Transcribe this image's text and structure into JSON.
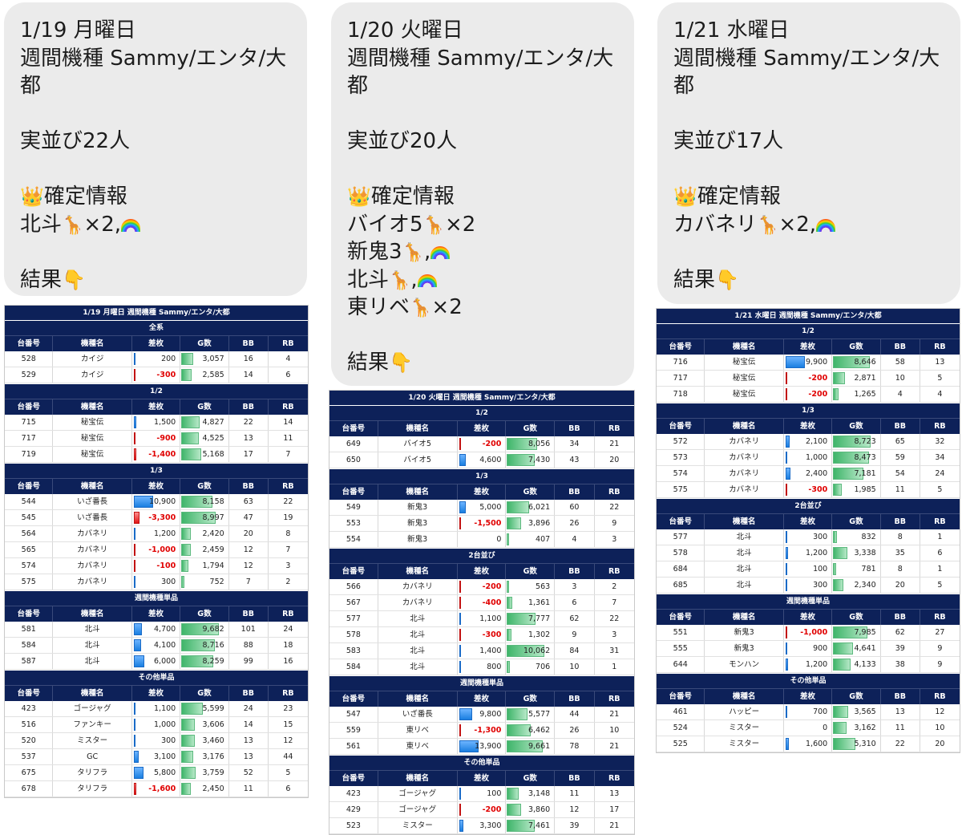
{
  "bubbles": [
    {
      "lines": [
        "1/19 月曜日",
        "週間機種 Sammy/エンタ/大",
        "都",
        "",
        "実並び22人",
        "",
        "確定情報",
        "北斗",
        "",
        "結果"
      ],
      "emoji_lines": {
        "6": [
          "crown"
        ],
        "7": [
          "giraffe",
          "×2,",
          "rainbow"
        ],
        "9": [
          "hand"
        ]
      },
      "x2": "×2,"
    },
    {
      "lines": [
        "1/20 火曜日",
        "週間機種 Sammy/エンタ/大",
        "都",
        "",
        "実並び20人",
        "",
        "確定情報",
        "バイオ5",
        "新鬼3",
        "北斗",
        "東リベ",
        "",
        "結果"
      ],
      "x2": "×2"
    },
    {
      "lines": [
        "1/21 水曜日",
        "週間機種 Sammy/エンタ/大",
        "都",
        "",
        "実並び17人",
        "",
        "確定情報",
        "カバネリ",
        "",
        "結果"
      ],
      "x2": "×2,"
    }
  ],
  "headers": [
    "台番号",
    "機種名",
    "差枚",
    "G数",
    "BB",
    "RB"
  ],
  "icons": {
    "crown": "crown-icon",
    "giraffe": "giraffe-icon",
    "rainbow": "rainbow-icon",
    "hand": "pointing-down-icon"
  },
  "colors": {
    "navy": "#0d2159",
    "negative": "#e00000",
    "diff_bar": "#1a7fe0",
    "neg_bar": "#e01616",
    "g_bar": "#3fb56a"
  },
  "tables": [
    {
      "title": "1/19 月曜日 週間機種 Sammy/エンタ/大都",
      "sections": [
        {
          "name": "全系",
          "rows": [
            [
              "528",
              "カイジ",
              200,
              3057,
              16,
              4
            ],
            [
              "529",
              "カイジ",
              -300,
              2585,
              14,
              6
            ]
          ]
        },
        {
          "name": "1/2",
          "rows": [
            [
              "715",
              "秘宝伝",
              1500,
              4827,
              22,
              14
            ],
            [
              "717",
              "秘宝伝",
              -900,
              4525,
              13,
              11
            ],
            [
              "719",
              "秘宝伝",
              -1400,
              5168,
              17,
              7
            ]
          ]
        },
        {
          "name": "1/3",
          "rows": [
            [
              "544",
              "いざ番長",
              10900,
              8158,
              63,
              22
            ],
            [
              "545",
              "いざ番長",
              -3300,
              8997,
              47,
              19
            ],
            [
              "564",
              "カバネリ",
              1200,
              2420,
              20,
              8
            ],
            [
              "565",
              "カバネリ",
              -1000,
              2459,
              12,
              7
            ],
            [
              "574",
              "カバネリ",
              -100,
              1794,
              12,
              3
            ],
            [
              "575",
              "カバネリ",
              300,
              752,
              7,
              2
            ]
          ]
        },
        {
          "name": "週間機種単品",
          "rows": [
            [
              "581",
              "北斗",
              4700,
              9682,
              101,
              24
            ],
            [
              "584",
              "北斗",
              4100,
              8716,
              88,
              18
            ],
            [
              "587",
              "北斗",
              6000,
              8259,
              99,
              16
            ]
          ]
        },
        {
          "name": "その他単品",
          "rows": [
            [
              "423",
              "ゴージャグ",
              1100,
              5599,
              24,
              23
            ],
            [
              "516",
              "ファンキー",
              1000,
              3606,
              14,
              15
            ],
            [
              "520",
              "ミスター",
              300,
              3460,
              13,
              12
            ],
            [
              "537",
              "GC",
              3100,
              3176,
              13,
              44
            ],
            [
              "675",
              "タリフラ",
              5800,
              3759,
              52,
              5
            ],
            [
              "678",
              "タリフラ",
              -1600,
              2450,
              11,
              6
            ]
          ]
        }
      ]
    },
    {
      "title": "1/20 火曜日 週間機種 Sammy/エンタ/大都",
      "sections": [
        {
          "name": "1/2",
          "rows": [
            [
              "649",
              "バイオ5",
              -200,
              8056,
              34,
              21
            ],
            [
              "650",
              "バイオ5",
              4600,
              7430,
              43,
              20
            ]
          ]
        },
        {
          "name": "1/3",
          "rows": [
            [
              "549",
              "新鬼3",
              5000,
              6021,
              60,
              22
            ],
            [
              "553",
              "新鬼3",
              -1500,
              3896,
              26,
              9
            ],
            [
              "554",
              "新鬼3",
              0,
              407,
              4,
              3
            ]
          ]
        },
        {
          "name": "2台並び",
          "rows": [
            [
              "566",
              "カバネリ",
              -200,
              563,
              3,
              2
            ],
            [
              "567",
              "カバネリ",
              -400,
              1361,
              6,
              7
            ],
            [
              "577",
              "北斗",
              1100,
              7777,
              62,
              22
            ],
            [
              "578",
              "北斗",
              -300,
              1302,
              9,
              3
            ],
            [
              "583",
              "北斗",
              1400,
              10062,
              84,
              31
            ],
            [
              "584",
              "北斗",
              800,
              706,
              10,
              1
            ]
          ]
        },
        {
          "name": "週間機種単品",
          "rows": [
            [
              "547",
              "いざ番長",
              9800,
              5577,
              44,
              21
            ],
            [
              "559",
              "東リベ",
              -1300,
              6462,
              26,
              10
            ],
            [
              "561",
              "東リベ",
              13900,
              9661,
              78,
              21
            ]
          ]
        },
        {
          "name": "その他単品",
          "rows": [
            [
              "423",
              "ゴージャグ",
              100,
              3148,
              11,
              13
            ],
            [
              "429",
              "ゴージャグ",
              -200,
              3860,
              12,
              17
            ],
            [
              "523",
              "ミスター",
              3300,
              7461,
              39,
              21
            ]
          ]
        }
      ]
    },
    {
      "title": "1/21 水曜日 週間機種 Sammy/エンタ/大都",
      "sections": [
        {
          "name": "1/2",
          "rows": [
            [
              "716",
              "秘宝伝",
              9900,
              8646,
              58,
              13
            ],
            [
              "717",
              "秘宝伝",
              -200,
              2871,
              10,
              5
            ],
            [
              "718",
              "秘宝伝",
              -200,
              1265,
              4,
              4
            ]
          ]
        },
        {
          "name": "1/3",
          "rows": [
            [
              "572",
              "カバネリ",
              2100,
              8723,
              65,
              32
            ],
            [
              "573",
              "カバネリ",
              1000,
              8473,
              59,
              34
            ],
            [
              "574",
              "カバネリ",
              2400,
              7181,
              54,
              24
            ],
            [
              "575",
              "カバネリ",
              -300,
              1985,
              11,
              5
            ]
          ]
        },
        {
          "name": "2台並び",
          "rows": [
            [
              "577",
              "北斗",
              300,
              832,
              8,
              1
            ],
            [
              "578",
              "北斗",
              1200,
              3338,
              35,
              6
            ],
            [
              "684",
              "北斗",
              100,
              781,
              8,
              1
            ],
            [
              "685",
              "北斗",
              300,
              2340,
              20,
              5
            ]
          ]
        },
        {
          "name": "週間機種単品",
          "rows": [
            [
              "551",
              "新鬼3",
              -1000,
              7985,
              62,
              27
            ],
            [
              "555",
              "新鬼3",
              900,
              4641,
              39,
              9
            ],
            [
              "644",
              "モンハン",
              1200,
              4133,
              38,
              9
            ]
          ]
        },
        {
          "name": "その他単品",
          "rows": [
            [
              "461",
              "ハッピー",
              700,
              3565,
              13,
              12
            ],
            [
              "524",
              "ミスター",
              0,
              3162,
              11,
              10
            ],
            [
              "525",
              "ミスター",
              1600,
              5310,
              22,
              20
            ]
          ]
        }
      ]
    }
  ]
}
